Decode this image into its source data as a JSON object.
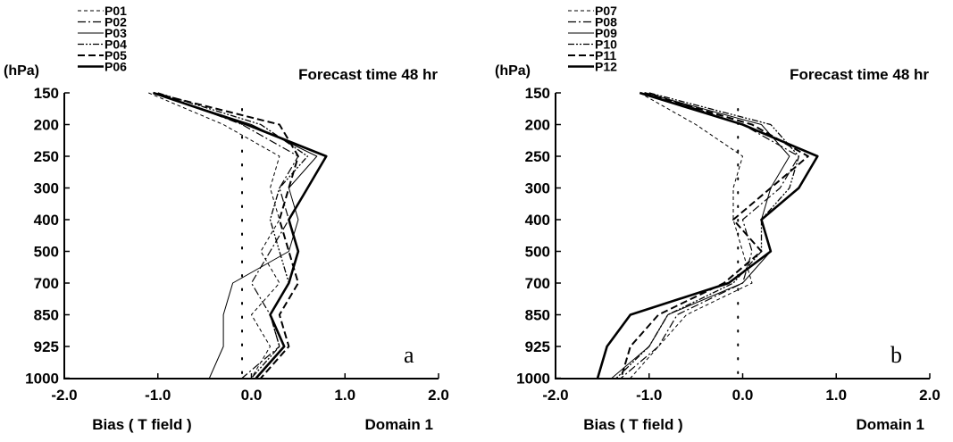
{
  "chart_data": [
    {
      "type": "line",
      "panel_label": "a",
      "title": "Forecast time 48 hr",
      "xlabel": "Bias ( T field )",
      "xlabel_right": "Domain 1",
      "ylabel": "(hPa)",
      "xlim": [
        -2.0,
        2.0
      ],
      "x_tick_labels": [
        "-2.0",
        "-1.0",
        "0.0",
        "1.0",
        "2.0"
      ],
      "y_tick_labels": [
        "150",
        "200",
        "250",
        "300",
        "400",
        "500",
        "700",
        "850",
        "925",
        "1000"
      ],
      "ref_x": -0.1,
      "legend_placement": "top-left, above plot",
      "series": [
        {
          "name": "P01",
          "dash": "4,3",
          "width": 1.0,
          "points": [
            [
              -1.1,
              150
            ],
            [
              -0.3,
              200
            ],
            [
              0.3,
              250
            ],
            [
              0.2,
              300
            ],
            [
              0.3,
              400
            ],
            [
              0.1,
              500
            ],
            [
              0.3,
              700
            ],
            [
              0.0,
              850
            ],
            [
              0.2,
              925
            ],
            [
              0.0,
              1000
            ]
          ]
        },
        {
          "name": "P02",
          "dash": "9,3,2,3",
          "width": 1.2,
          "points": [
            [
              -1.0,
              150
            ],
            [
              -0.1,
              200
            ],
            [
              0.5,
              250
            ],
            [
              0.3,
              300
            ],
            [
              0.4,
              400
            ],
            [
              0.2,
              500
            ],
            [
              0.0,
              700
            ],
            [
              0.2,
              850
            ],
            [
              0.3,
              925
            ],
            [
              -0.1,
              1000
            ]
          ]
        },
        {
          "name": "P03",
          "dash": "",
          "width": 1.0,
          "points": [
            [
              -1.05,
              150
            ],
            [
              0.0,
              200
            ],
            [
              0.7,
              250
            ],
            [
              0.4,
              300
            ],
            [
              0.5,
              400
            ],
            [
              0.4,
              500
            ],
            [
              -0.2,
              700
            ],
            [
              -0.3,
              850
            ],
            [
              -0.3,
              925
            ],
            [
              -0.45,
              1000
            ]
          ]
        },
        {
          "name": "P04",
          "dash": "7,2,2,2,2,2",
          "width": 1.3,
          "points": [
            [
              -1.0,
              150
            ],
            [
              0.1,
              200
            ],
            [
              0.6,
              250
            ],
            [
              0.3,
              300
            ],
            [
              0.2,
              400
            ],
            [
              0.3,
              500
            ],
            [
              0.4,
              700
            ],
            [
              0.2,
              850
            ],
            [
              0.3,
              925
            ],
            [
              0.0,
              1000
            ]
          ]
        },
        {
          "name": "P05",
          "dash": "8,4",
          "width": 2.0,
          "points": [
            [
              -1.05,
              150
            ],
            [
              0.3,
              200
            ],
            [
              0.5,
              250
            ],
            [
              0.4,
              300
            ],
            [
              0.3,
              400
            ],
            [
              0.4,
              500
            ],
            [
              0.5,
              700
            ],
            [
              0.3,
              850
            ],
            [
              0.4,
              925
            ],
            [
              0.1,
              1000
            ]
          ]
        },
        {
          "name": "P06",
          "dash": "",
          "width": 2.6,
          "points": [
            [
              -1.05,
              150
            ],
            [
              -0.05,
              200
            ],
            [
              0.8,
              250
            ],
            [
              0.6,
              300
            ],
            [
              0.4,
              400
            ],
            [
              0.5,
              500
            ],
            [
              0.4,
              700
            ],
            [
              0.2,
              850
            ],
            [
              0.35,
              925
            ],
            [
              0.05,
              1000
            ]
          ]
        }
      ]
    },
    {
      "type": "line",
      "panel_label": "b",
      "title": "Forecast time 48 hr",
      "xlabel": "Bias ( T field )",
      "xlabel_right": "Domain 1",
      "ylabel": "(hPa)",
      "xlim": [
        -2.0,
        2.0
      ],
      "x_tick_labels": [
        "-2.0",
        "-1.0",
        "0.0",
        "1.0",
        "2.0"
      ],
      "y_tick_labels": [
        "150",
        "200",
        "250",
        "300",
        "400",
        "500",
        "700",
        "850",
        "925",
        "1000"
      ],
      "ref_x": -0.05,
      "legend_placement": "top-left, above plot",
      "series": [
        {
          "name": "P07",
          "dash": "4,3",
          "width": 1.0,
          "points": [
            [
              -1.1,
              150
            ],
            [
              -0.5,
              200
            ],
            [
              0.0,
              250
            ],
            [
              -0.1,
              300
            ],
            [
              -0.1,
              400
            ],
            [
              0.0,
              500
            ],
            [
              0.1,
              700
            ],
            [
              -0.6,
              850
            ],
            [
              -0.9,
              925
            ],
            [
              -1.2,
              1000
            ]
          ]
        },
        {
          "name": "P08",
          "dash": "9,3,2,3",
          "width": 1.2,
          "points": [
            [
              -1.0,
              150
            ],
            [
              0.0,
              200
            ],
            [
              0.6,
              250
            ],
            [
              0.4,
              300
            ],
            [
              0.0,
              400
            ],
            [
              0.1,
              500
            ],
            [
              0.0,
              700
            ],
            [
              -0.7,
              850
            ],
            [
              -0.9,
              925
            ],
            [
              -1.3,
              1000
            ]
          ]
        },
        {
          "name": "P09",
          "dash": "",
          "width": 1.0,
          "points": [
            [
              -1.05,
              150
            ],
            [
              0.2,
              200
            ],
            [
              0.5,
              250
            ],
            [
              0.3,
              300
            ],
            [
              0.2,
              400
            ],
            [
              0.3,
              500
            ],
            [
              0.0,
              700
            ],
            [
              -0.8,
              850
            ],
            [
              -1.0,
              925
            ],
            [
              -1.4,
              1000
            ]
          ]
        },
        {
          "name": "P10",
          "dash": "7,2,2,2,2,2",
          "width": 1.3,
          "points": [
            [
              -1.0,
              150
            ],
            [
              0.3,
              200
            ],
            [
              0.6,
              250
            ],
            [
              0.5,
              300
            ],
            [
              0.2,
              400
            ],
            [
              0.2,
              500
            ],
            [
              -0.1,
              700
            ],
            [
              -0.8,
              850
            ],
            [
              -1.0,
              925
            ],
            [
              -1.35,
              1000
            ]
          ]
        },
        {
          "name": "P11",
          "dash": "8,4",
          "width": 2.0,
          "points": [
            [
              -1.05,
              150
            ],
            [
              0.1,
              200
            ],
            [
              0.7,
              250
            ],
            [
              0.3,
              300
            ],
            [
              -0.1,
              400
            ],
            [
              0.2,
              500
            ],
            [
              -0.2,
              700
            ],
            [
              -0.9,
              850
            ],
            [
              -1.2,
              925
            ],
            [
              -1.3,
              1000
            ]
          ]
        },
        {
          "name": "P12",
          "dash": "",
          "width": 2.6,
          "points": [
            [
              -1.1,
              150
            ],
            [
              0.0,
              200
            ],
            [
              0.8,
              250
            ],
            [
              0.6,
              300
            ],
            [
              0.2,
              400
            ],
            [
              0.3,
              500
            ],
            [
              -0.15,
              700
            ],
            [
              -1.2,
              850
            ],
            [
              -1.45,
              925
            ],
            [
              -1.55,
              1000
            ]
          ]
        }
      ]
    }
  ]
}
